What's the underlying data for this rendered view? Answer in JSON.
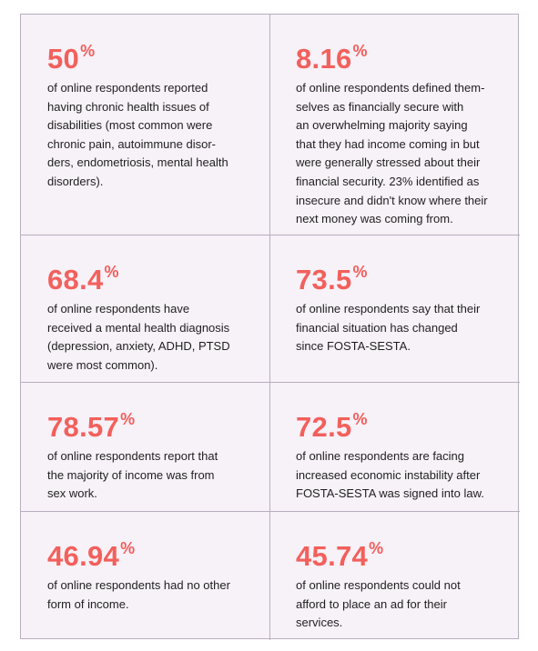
{
  "cells": [
    {
      "stat": "50",
      "unit": "%",
      "lines": [
        "of online respondents reported",
        "having chronic health issues of",
        "disabilities (most common were",
        "chronic pain, autoimmune disor-",
        "ders, endometriosis, mental health",
        "disorders)."
      ]
    },
    {
      "stat": "8.16",
      "unit": "%",
      "lines": [
        "of online respondents defined them-",
        "selves as financially secure with",
        "an overwhelming majority saying",
        "that they had income coming in but",
        "were generally stressed about their",
        "financial security. 23% identified as",
        "insecure and didn't know where their",
        "next money was coming from."
      ]
    },
    {
      "stat": "68.4",
      "unit": "%",
      "lines": [
        "of online respondents have",
        "received a mental health diagnosis",
        "(depression, anxiety, ADHD, PTSD",
        "were most common)."
      ]
    },
    {
      "stat": "73.5",
      "unit": "%",
      "lines": [
        "of online respondents say that their",
        "financial situation has changed",
        "since FOSTA-SESTA."
      ]
    },
    {
      "stat": "78.57",
      "unit": "%",
      "lines": [
        "of online respondents report that",
        "the majority of income was from",
        "sex work."
      ]
    },
    {
      "stat": "72.5",
      "unit": "%",
      "lines": [
        "of online respondents are facing",
        "increased economic instability after",
        "FOSTA-SESTA was signed into law."
      ]
    },
    {
      "stat": "46.94",
      "unit": "%",
      "lines": [
        "of online respondents had no other",
        "form of income."
      ]
    },
    {
      "stat": "45.74",
      "unit": "%",
      "lines": [
        "of online respondents could not",
        "afford to place an ad for their",
        "services."
      ]
    }
  ]
}
